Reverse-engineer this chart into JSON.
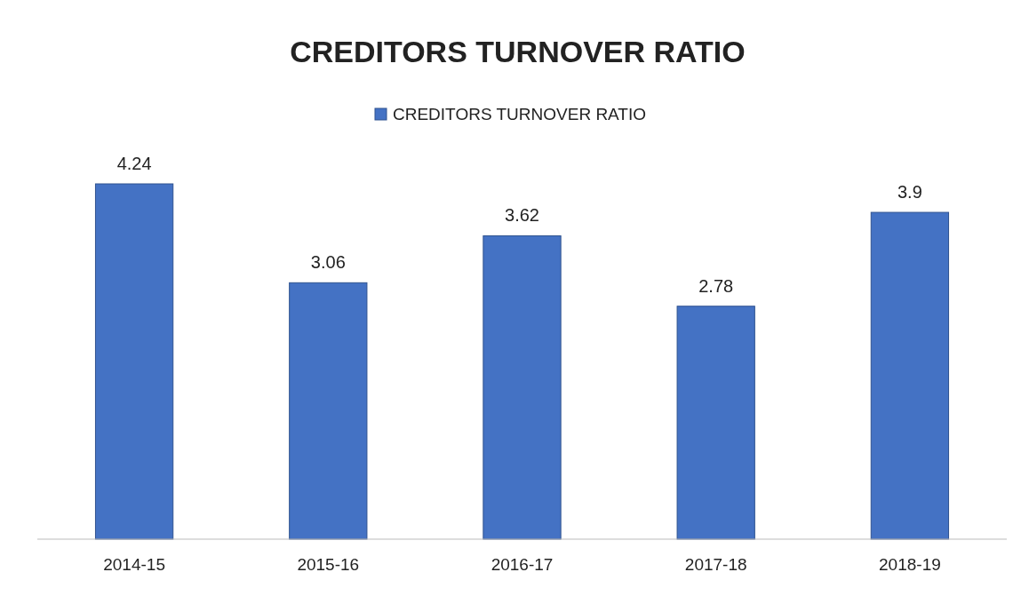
{
  "chart_data": {
    "type": "bar",
    "title": "CREDITORS TURNOVER RATIO",
    "categories": [
      "2014-15",
      "2015-16",
      "2016-17",
      "2017-18",
      "2018-19"
    ],
    "series": [
      {
        "name": "CREDITORS TURNOVER RATIO",
        "color": "#4472c4",
        "values": [
          4.24,
          3.06,
          3.62,
          2.78,
          3.9
        ]
      }
    ],
    "data_labels": true,
    "legend": "top",
    "grid": false
  }
}
